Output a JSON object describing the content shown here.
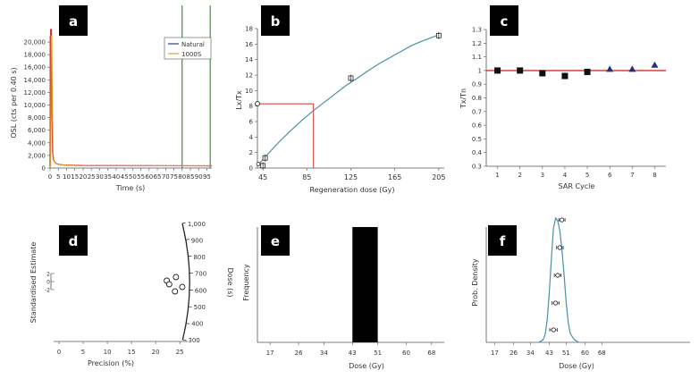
{
  "colors": {
    "axis": "#555555",
    "curve": "#4a8fa6",
    "spike": "#d03020",
    "green": "#2a8a2a",
    "natural": "#2b3f8f",
    "dose_line": "#d0302a",
    "ratio_line": "#cc3333",
    "marker_dark": "#111111",
    "triangle": "#25307a"
  },
  "chart_data": [
    {
      "panel": "a",
      "type": "line",
      "xlabel": "Time (s)",
      "ylabel": "OSL (cts per 0.40 s)",
      "xlim": [
        0,
        98
      ],
      "ylim": [
        0,
        21000
      ],
      "xticks": [
        0,
        5,
        10,
        15,
        20,
        25,
        30,
        35,
        40,
        45,
        50,
        55,
        60,
        65,
        70,
        75,
        80,
        85,
        90,
        95
      ],
      "yticks": [
        0,
        2000,
        4000,
        6000,
        8000,
        10000,
        12000,
        14000,
        16000,
        18000,
        20000
      ],
      "ytick_labels": [
        "0",
        "2,000",
        "4,000",
        "6,000",
        "8,000",
        "10,000",
        "12,000",
        "14,000",
        "16,000",
        "18,000",
        "20,000"
      ],
      "legend": [
        "Natural",
        "1000S"
      ],
      "legend_position": "top-right",
      "signal_window": [
        80,
        97
      ],
      "series": [
        {
          "name": "Natural",
          "x": [
            0,
            0.4,
            0.8,
            1.2,
            1.6,
            2,
            3,
            4,
            6,
            8,
            12,
            20,
            98
          ],
          "y": [
            300,
            22000,
            22000,
            8000,
            2500,
            1400,
            900,
            700,
            550,
            500,
            450,
            400,
            350
          ]
        },
        {
          "name": "1000S",
          "x": [
            0,
            0.4,
            0.8,
            1.2,
            1.6,
            2,
            3,
            4,
            6,
            8,
            12,
            20,
            98
          ],
          "y": [
            250,
            21000,
            21000,
            7500,
            2300,
            1300,
            850,
            650,
            520,
            480,
            430,
            380,
            330
          ]
        }
      ]
    },
    {
      "panel": "b",
      "type": "scatter",
      "xlabel": "Regeneration dose (Gy)",
      "ylabel": "Lx/Tx",
      "xlim": [
        40,
        210
      ],
      "ylim": [
        0,
        18
      ],
      "xticks": [
        45,
        85,
        125,
        165,
        205
      ],
      "yticks": [
        0,
        2,
        4,
        6,
        8,
        10,
        12,
        14,
        16,
        18
      ],
      "points": [
        {
          "x": 40,
          "y": 0.4
        },
        {
          "x": 45,
          "y": 0.3
        },
        {
          "x": 47,
          "y": 1.3
        },
        {
          "x": 125,
          "y": 11.6
        },
        {
          "x": 205,
          "y": 17.1
        }
      ],
      "fit": {
        "x": [
          40,
          50,
          60,
          70,
          80,
          90,
          100,
          110,
          120,
          130,
          140,
          150,
          160,
          170,
          180,
          190,
          205
        ],
        "y": [
          0.3,
          1.9,
          3.4,
          4.8,
          6.1,
          7.3,
          8.4,
          9.5,
          10.6,
          11.5,
          12.5,
          13.4,
          14.2,
          15.0,
          15.8,
          16.4,
          17.2
        ]
      },
      "natural": {
        "lx_tx": 8.3,
        "de": 91
      }
    },
    {
      "panel": "c",
      "type": "scatter",
      "xlabel": "SAR Cycle",
      "ylabel": "Tx/Tn",
      "xlim": [
        0.5,
        8.5
      ],
      "ylim": [
        0.3,
        1.3
      ],
      "xticks": [
        1,
        2,
        3,
        4,
        5,
        6,
        7,
        8
      ],
      "yticks": [
        0.3,
        0.4,
        0.5,
        0.6,
        0.7,
        0.8,
        0.9,
        1,
        1.1,
        1.2,
        1.3
      ],
      "reference_line": 1.0,
      "points": [
        {
          "x": 1,
          "y": 1.0,
          "marker": "square"
        },
        {
          "x": 2,
          "y": 1.0,
          "marker": "square"
        },
        {
          "x": 3,
          "y": 0.98,
          "marker": "square"
        },
        {
          "x": 4,
          "y": 0.96,
          "marker": "square"
        },
        {
          "x": 5,
          "y": 0.99,
          "marker": "square"
        },
        {
          "x": 6,
          "y": 1.01,
          "marker": "triangle"
        },
        {
          "x": 7,
          "y": 1.01,
          "marker": "triangle"
        },
        {
          "x": 8,
          "y": 1.04,
          "marker": "triangle"
        }
      ]
    },
    {
      "panel": "d",
      "type": "scatter",
      "subtype": "radial",
      "xlabel": "Precision (%)",
      "ylabel": "Standardised Estimate",
      "zlabel": "Dose (s)",
      "xticks": [
        0,
        5,
        10,
        15,
        20,
        25
      ],
      "yticks": [
        -2,
        0,
        2
      ],
      "arc_ticks": [
        300,
        400,
        500,
        600,
        700,
        800,
        900,
        1000
      ],
      "arc_tick_labels": [
        "300",
        "400",
        "500",
        "600",
        "700",
        "800",
        "900",
        "1,000"
      ],
      "points": [
        {
          "x": 22.3,
          "y": 0.2
        },
        {
          "x": 22.8,
          "y": -0.2
        },
        {
          "x": 24.2,
          "y": 0.6
        },
        {
          "x": 24.0,
          "y": -1.0
        },
        {
          "x": 25.5,
          "y": -0.5
        }
      ]
    },
    {
      "panel": "e",
      "type": "bar",
      "xlabel": "Dose (Gy)",
      "ylabel": "Frequency",
      "xticks": [
        17,
        26,
        34,
        43,
        51,
        60,
        68
      ],
      "xlim": [
        13,
        72
      ],
      "bars": [
        {
          "from": 43,
          "to": 51,
          "value": 1
        }
      ]
    },
    {
      "panel": "f",
      "type": "line",
      "xlabel": "Dose (Gy)",
      "ylabel": "Prob. Density",
      "xticks": [
        17,
        26,
        34,
        43,
        51,
        60,
        68
      ],
      "xlim": [
        13,
        110
      ],
      "kde": {
        "x": [
          38,
          40,
          41,
          42,
          43,
          44,
          45,
          46,
          47,
          48,
          49,
          50,
          51,
          52,
          53,
          55,
          57
        ],
        "y": [
          0,
          0.02,
          0.06,
          0.18,
          0.4,
          0.68,
          0.92,
          1.0,
          0.98,
          0.9,
          0.75,
          0.55,
          0.33,
          0.16,
          0.07,
          0.02,
          0
        ]
      },
      "estimates": [
        {
          "value": 49,
          "err": 1.5
        },
        {
          "value": 48,
          "err": 1.6
        },
        {
          "value": 47,
          "err": 1.6
        },
        {
          "value": 46,
          "err": 1.7
        },
        {
          "value": 45,
          "err": 1.8
        }
      ]
    }
  ],
  "labels": {
    "a": "a",
    "b": "b",
    "c": "c",
    "d": "d",
    "e": "e",
    "f": "f"
  }
}
